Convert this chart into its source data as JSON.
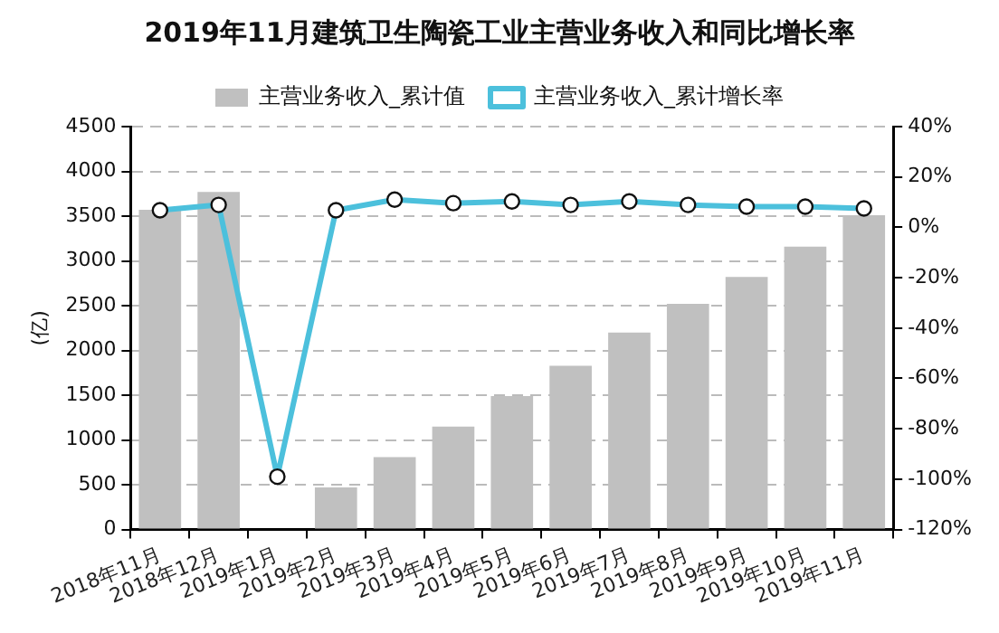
{
  "chart_data": {
    "type": "bar",
    "title": "2019年11月建筑卫生陶瓷工业主营业务收入和同比增长率",
    "ylabel": "(亿)",
    "categories": [
      "2018年11月",
      "2018年12月",
      "2019年1月",
      "2019年2月",
      "2019年3月",
      "2019年4月",
      "2019年5月",
      "2019年6月",
      "2019年7月",
      "2019年8月",
      "2019年9月",
      "2019年10月",
      "2019年11月"
    ],
    "series": [
      {
        "name": "主营业务收入_累计值",
        "color": "#c0c0c0",
        "values": [
          3570,
          3770,
          null,
          470,
          810,
          1150,
          1490,
          1830,
          2200,
          2520,
          2820,
          3160,
          3510
        ]
      },
      {
        "name": "主营业务收入_累计增长率",
        "type": "line",
        "axis": "y2",
        "color": "#4cc0dc",
        "values": [
          6.8,
          8.9,
          -99,
          6.8,
          11,
          9.6,
          10.3,
          8.9,
          10.3,
          8.9,
          8.2,
          8.2,
          7.5
        ]
      }
    ],
    "ylim": [
      0,
      4500
    ],
    "yticks": [
      0,
      500,
      1000,
      1500,
      2000,
      2500,
      3000,
      3500,
      4000,
      4500
    ],
    "y2lim": [
      -120,
      40
    ],
    "y2ticks": [
      {
        "value": -120,
        "label": "-120%"
      },
      {
        "value": -100,
        "label": "-100%"
      },
      {
        "value": -80,
        "label": "-80%"
      },
      {
        "value": -60,
        "label": "-60%"
      },
      {
        "value": -40,
        "label": "-40%"
      },
      {
        "value": -20,
        "label": "-20%"
      },
      {
        "value": 0,
        "label": "0%"
      },
      {
        "value": 20,
        "label": "20%"
      },
      {
        "value": 40,
        "label": "40%"
      }
    ],
    "grid": "y",
    "legend": "top",
    "marker": "circle",
    "line_style": "solid"
  }
}
